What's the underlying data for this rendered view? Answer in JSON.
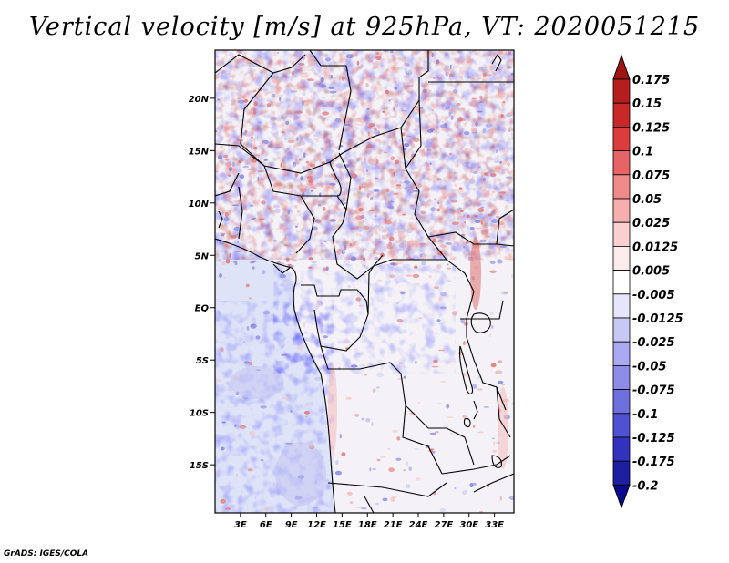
{
  "title": "Vertical velocity [m/s] at 925hPa, VT: 2020051215",
  "footer": "GrADS: IGES/COLA",
  "map": {
    "lon_range": [
      0,
      35.3
    ],
    "lat_range": [
      -19.6,
      24.6
    ],
    "lon_ticks": [
      {
        "lon": 3,
        "label": "3E"
      },
      {
        "lon": 6,
        "label": "6E"
      },
      {
        "lon": 9,
        "label": "9E"
      },
      {
        "lon": 12,
        "label": "12E"
      },
      {
        "lon": 15,
        "label": "15E"
      },
      {
        "lon": 18,
        "label": "18E"
      },
      {
        "lon": 21,
        "label": "21E"
      },
      {
        "lon": 24,
        "label": "24E"
      },
      {
        "lon": 27,
        "label": "27E"
      },
      {
        "lon": 30,
        "label": "30E"
      },
      {
        "lon": 33,
        "label": "33E"
      }
    ],
    "lat_ticks": [
      {
        "lat": 20,
        "label": "20N"
      },
      {
        "lat": 15,
        "label": "15N"
      },
      {
        "lat": 10,
        "label": "10N"
      },
      {
        "lat": 5,
        "label": "5N"
      },
      {
        "lat": 0,
        "label": "EQ"
      },
      {
        "lat": -5,
        "label": "5S"
      },
      {
        "lat": -10,
        "label": "10S"
      },
      {
        "lat": -15,
        "label": "15S"
      }
    ]
  },
  "colorbar": {
    "levels": [
      "0.175",
      "0.15",
      "0.125",
      "0.1",
      "0.075",
      "0.05",
      "0.025",
      "0.0125",
      "0.005",
      "-0.005",
      "-0.0125",
      "-0.025",
      "-0.05",
      "-0.075",
      "-0.1",
      "-0.125",
      "-0.175",
      "-0.2"
    ],
    "colors": [
      "#a01414",
      "#b41e1e",
      "#c82828",
      "#dc3c3c",
      "#e66464",
      "#ee8a8a",
      "#f5afaf",
      "#f9cfcf",
      "#fcebeb",
      "#ffffff",
      "#e6e6fa",
      "#c8c8f5",
      "#aaaaf0",
      "#8c8ce6",
      "#6e6edc",
      "#5050d2",
      "#3232be",
      "#1e1ea0",
      "#0a0a8c"
    ]
  },
  "field_colors": {
    "land_base": "#f4f2f6",
    "ocean_base": "#dfe3f7",
    "red_strong": "#e07070",
    "red_light": "#f4bcbc",
    "blue_strong": "#8080e0",
    "blue_light": "#c4c6f2"
  }
}
